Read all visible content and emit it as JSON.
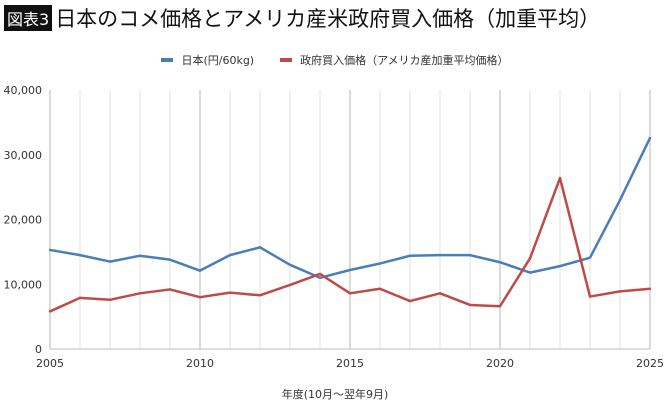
{
  "header": {
    "badge": "図表3",
    "title": "日本のコメ価格とアメリカ産米政府買入価格（加重平均）"
  },
  "chart_data": {
    "type": "line",
    "x": [
      2005,
      2006,
      2007,
      2008,
      2009,
      2010,
      2011,
      2012,
      2013,
      2014,
      2015,
      2016,
      2017,
      2018,
      2019,
      2020,
      2021,
      2022,
      2023,
      2024,
      2025
    ],
    "series": [
      {
        "name": "日本(円/60kg)",
        "color": "#4a7ebb",
        "values": [
          15300,
          14500,
          13500,
          14400,
          13800,
          12100,
          14500,
          15700,
          13000,
          11000,
          12200,
          13200,
          14400,
          14500,
          14500,
          13400,
          11800,
          12800,
          14100,
          23000,
          32600
        ]
      },
      {
        "name": "政府買入価格（アメリカ産加重平均価格）",
        "color": "#be4b48",
        "values": [
          5800,
          7900,
          7600,
          8600,
          9200,
          8000,
          8700,
          8300,
          9900,
          11600,
          8600,
          9300,
          7400,
          8600,
          6800,
          6600,
          14000,
          26400,
          8100,
          8900,
          9300
        ]
      }
    ],
    "xlabel": "年度(10月～翌年9月)",
    "ylabel": "",
    "xlim": [
      2005,
      2025
    ],
    "ylim": [
      0,
      40000
    ],
    "yticks": [
      "0",
      "10,000",
      "20,000",
      "30,000",
      "40,000"
    ],
    "xticks": [
      "2005",
      "2010",
      "2015",
      "2020",
      "2025"
    ],
    "grid": "vertical yearly",
    "legend": "top"
  }
}
